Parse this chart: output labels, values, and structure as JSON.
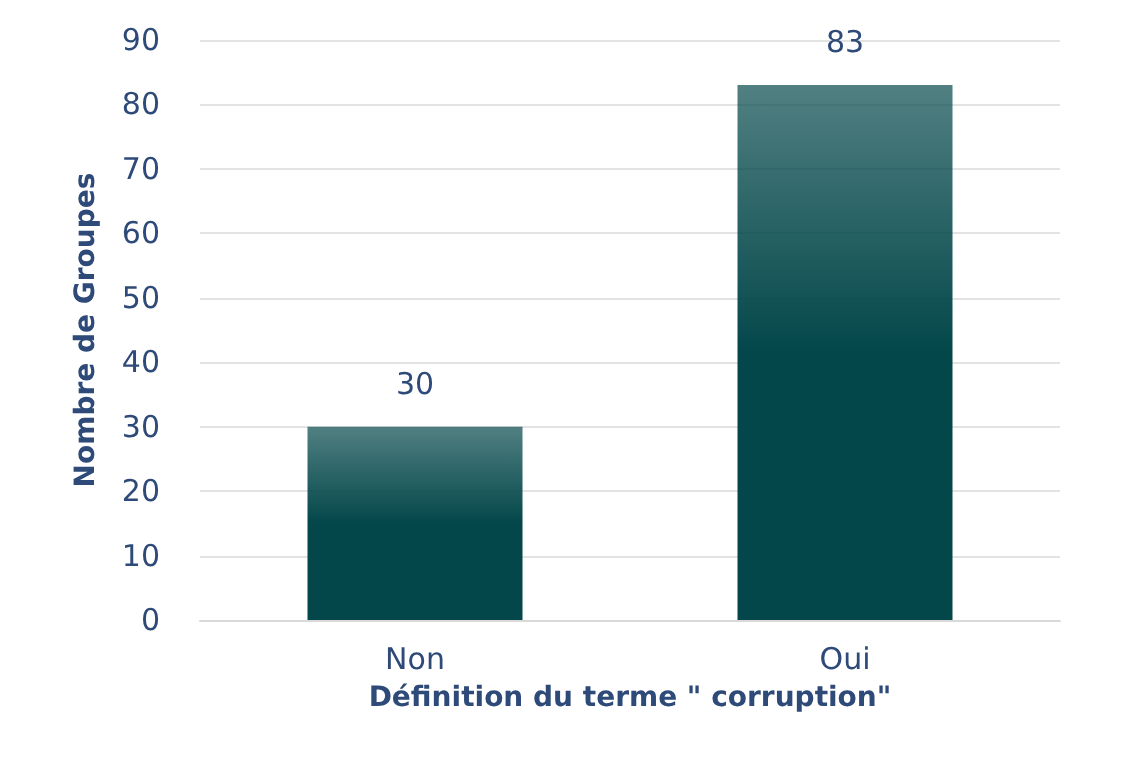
{
  "chart_data": {
    "type": "bar",
    "xlabel": "Définition du terme \" corruption\"",
    "ylabel": "Nombre de Groupes",
    "categories": [
      "Non",
      "Oui"
    ],
    "values": [
      30,
      83
    ],
    "color": "#03474a",
    "ylim": [
      0,
      90
    ],
    "yticks": [
      0,
      10,
      20,
      30,
      40,
      50,
      60,
      70,
      80,
      90
    ],
    "grid": "y",
    "data_labels": true
  }
}
